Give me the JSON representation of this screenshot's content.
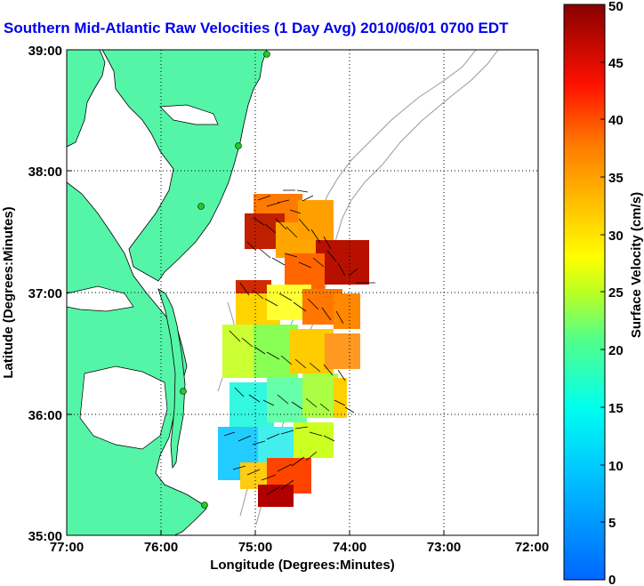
{
  "title": "Southern Mid-Atlantic Raw Velocities (1 Day Avg) 2010/06/01 0700 EDT",
  "x_label": "Longitude (Degrees:Minutes)",
  "y_label": "Latitude (Degrees:Minutes)",
  "colorbar": {
    "label": "Surface Velocity (cm/s)",
    "range": [
      0,
      50
    ],
    "ticks": [
      "0",
      "5",
      "10",
      "15",
      "20",
      "25",
      "30",
      "35",
      "40",
      "45",
      "50"
    ]
  },
  "x_ticks": [
    "77:00",
    "76:00",
    "75:00",
    "74:00",
    "73:00",
    "72:00"
  ],
  "y_ticks": [
    "39:00",
    "38:00",
    "37:00",
    "36:00",
    "35:00"
  ],
  "colors": {
    "land": "#55f5a8",
    "title": "#0000ee",
    "station": "#22cc22",
    "bathymetry": "#999999"
  },
  "grid": "dotted"
}
